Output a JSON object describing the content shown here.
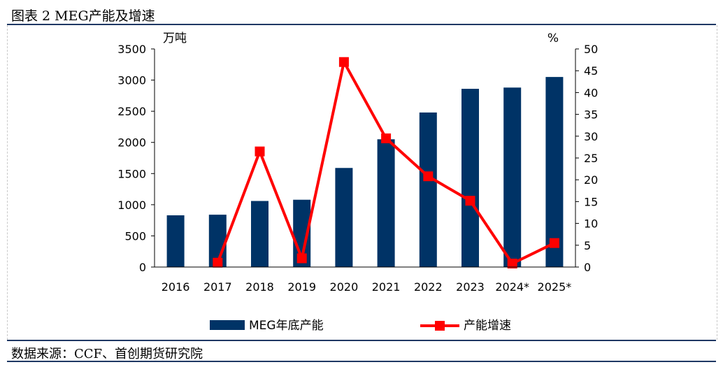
{
  "header": {
    "title": "图表 2 MEG产能及增速"
  },
  "footer": {
    "source": "数据来源：CCF、首创期货研究院"
  },
  "chart_data": {
    "type": "bar",
    "categories": [
      "2016",
      "2017",
      "2018",
      "2019",
      "2020",
      "2021",
      "2022",
      "2023",
      "2024*",
      "2025*"
    ],
    "series": [
      {
        "name": "MEG年底产能",
        "type": "bar",
        "axis": "left",
        "color": "#003366",
        "values": [
          830,
          840,
          1060,
          1080,
          1590,
          2050,
          2480,
          2860,
          2880,
          3050
        ]
      },
      {
        "name": "产能增速",
        "type": "line",
        "axis": "right",
        "color": "#ff0000",
        "marker": "square",
        "values": [
          null,
          1.0,
          26.5,
          2.0,
          47.0,
          29.5,
          20.8,
          15.2,
          0.8,
          5.5
        ]
      }
    ],
    "y_left": {
      "unit_label": "万吨",
      "ylim": [
        0,
        3500
      ],
      "ticks": [
        "0",
        "500",
        "1000",
        "1500",
        "2000",
        "2500",
        "3000",
        "3500"
      ]
    },
    "y_right": {
      "unit_label": "%",
      "ylim": [
        0,
        50
      ],
      "ticks": [
        "0",
        "5",
        "10",
        "15",
        "20",
        "25",
        "30",
        "35",
        "40",
        "45",
        "50"
      ]
    },
    "grid": false,
    "legend_position": "bottom"
  }
}
